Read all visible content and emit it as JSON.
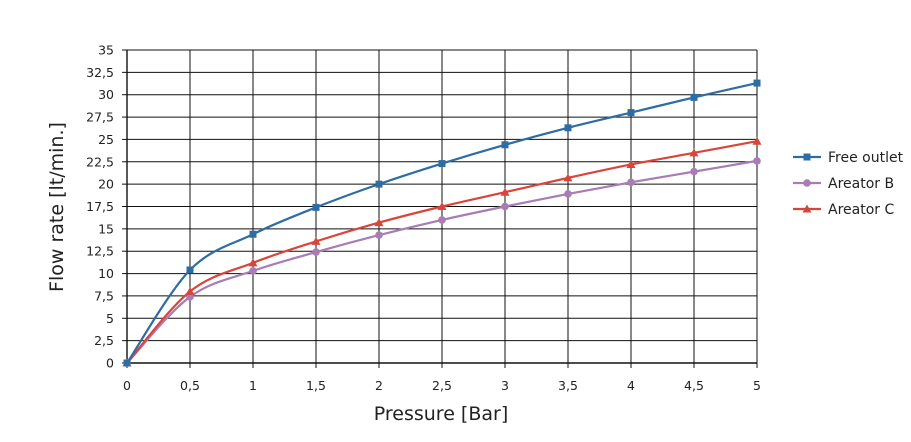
{
  "chart_data": {
    "type": "line",
    "xlabel": "Pressure [Bar]",
    "ylabel": "Flow rate [lt/min.]",
    "xlim": [
      0,
      5
    ],
    "ylim": [
      0,
      35
    ],
    "x_ticks": [
      "0",
      "0,5",
      "1",
      "1,5",
      "2",
      "2,5",
      "3",
      "3,5",
      "4",
      "4,5",
      "5"
    ],
    "y_ticks": [
      "0",
      "2,5",
      "5",
      "7,5",
      "10",
      "12,5",
      "15",
      "17,5",
      "20",
      "22,5",
      "25",
      "27,5",
      "30",
      "32,5",
      "35"
    ],
    "grid": true,
    "legend_position": "right",
    "x": [
      0,
      0.5,
      1,
      1.5,
      2,
      2.5,
      3,
      3.5,
      4,
      4.5,
      5
    ],
    "series": [
      {
        "name": "Free outlet",
        "color": "#2e6da4",
        "marker": "square",
        "values": [
          0,
          10.4,
          14.4,
          17.4,
          20.0,
          22.3,
          24.4,
          26.3,
          28.0,
          29.7,
          31.3
        ]
      },
      {
        "name": "Areator B",
        "color": "#a97cb5",
        "marker": "circle",
        "values": [
          0,
          7.4,
          10.3,
          12.4,
          14.3,
          16.0,
          17.5,
          18.9,
          20.2,
          21.4,
          22.6
        ]
      },
      {
        "name": "Areator C",
        "color": "#d9453a",
        "marker": "triangle",
        "values": [
          0,
          8.0,
          11.2,
          13.6,
          15.7,
          17.5,
          19.1,
          20.7,
          22.2,
          23.5,
          24.8
        ]
      }
    ]
  }
}
